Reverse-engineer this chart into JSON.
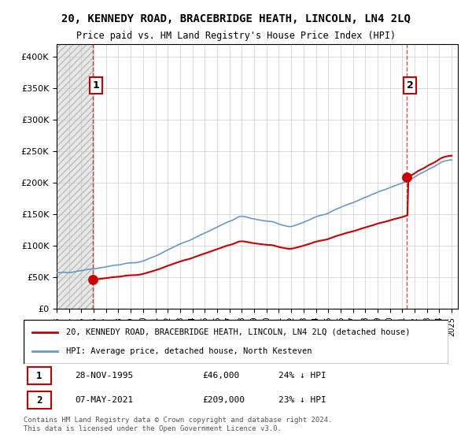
{
  "title": "20, KENNEDY ROAD, BRACEBRIDGE HEATH, LINCOLN, LN4 2LQ",
  "subtitle": "Price paid vs. HM Land Registry's House Price Index (HPI)",
  "legend_line1": "20, KENNEDY ROAD, BRACEBRIDGE HEATH, LINCOLN, LN4 2LQ (detached house)",
  "legend_line2": "HPI: Average price, detached house, North Kesteven",
  "table_row1": "1    28-NOV-1995    £46,000    24% ↓ HPI",
  "table_row2": "2    07-MAY-2021    £209,000    23% ↓ HPI",
  "footnote": "Contains HM Land Registry data © Crown copyright and database right 2024.\nThis data is licensed under the Open Government Licence v3.0.",
  "price_color": "#cc0000",
  "hpi_color": "#6699cc",
  "marker_color": "#cc0000",
  "annotation1_label": "1",
  "annotation2_label": "2",
  "sale1_year": 1995.9,
  "sale1_price": 46000,
  "sale2_year": 2021.35,
  "sale2_price": 209000,
  "ylim_min": 0,
  "ylim_max": 420000,
  "background_color": "#ffffff",
  "plot_bg_color": "#ffffff",
  "grid_color": "#cccccc",
  "hatch_color": "#dddddd"
}
